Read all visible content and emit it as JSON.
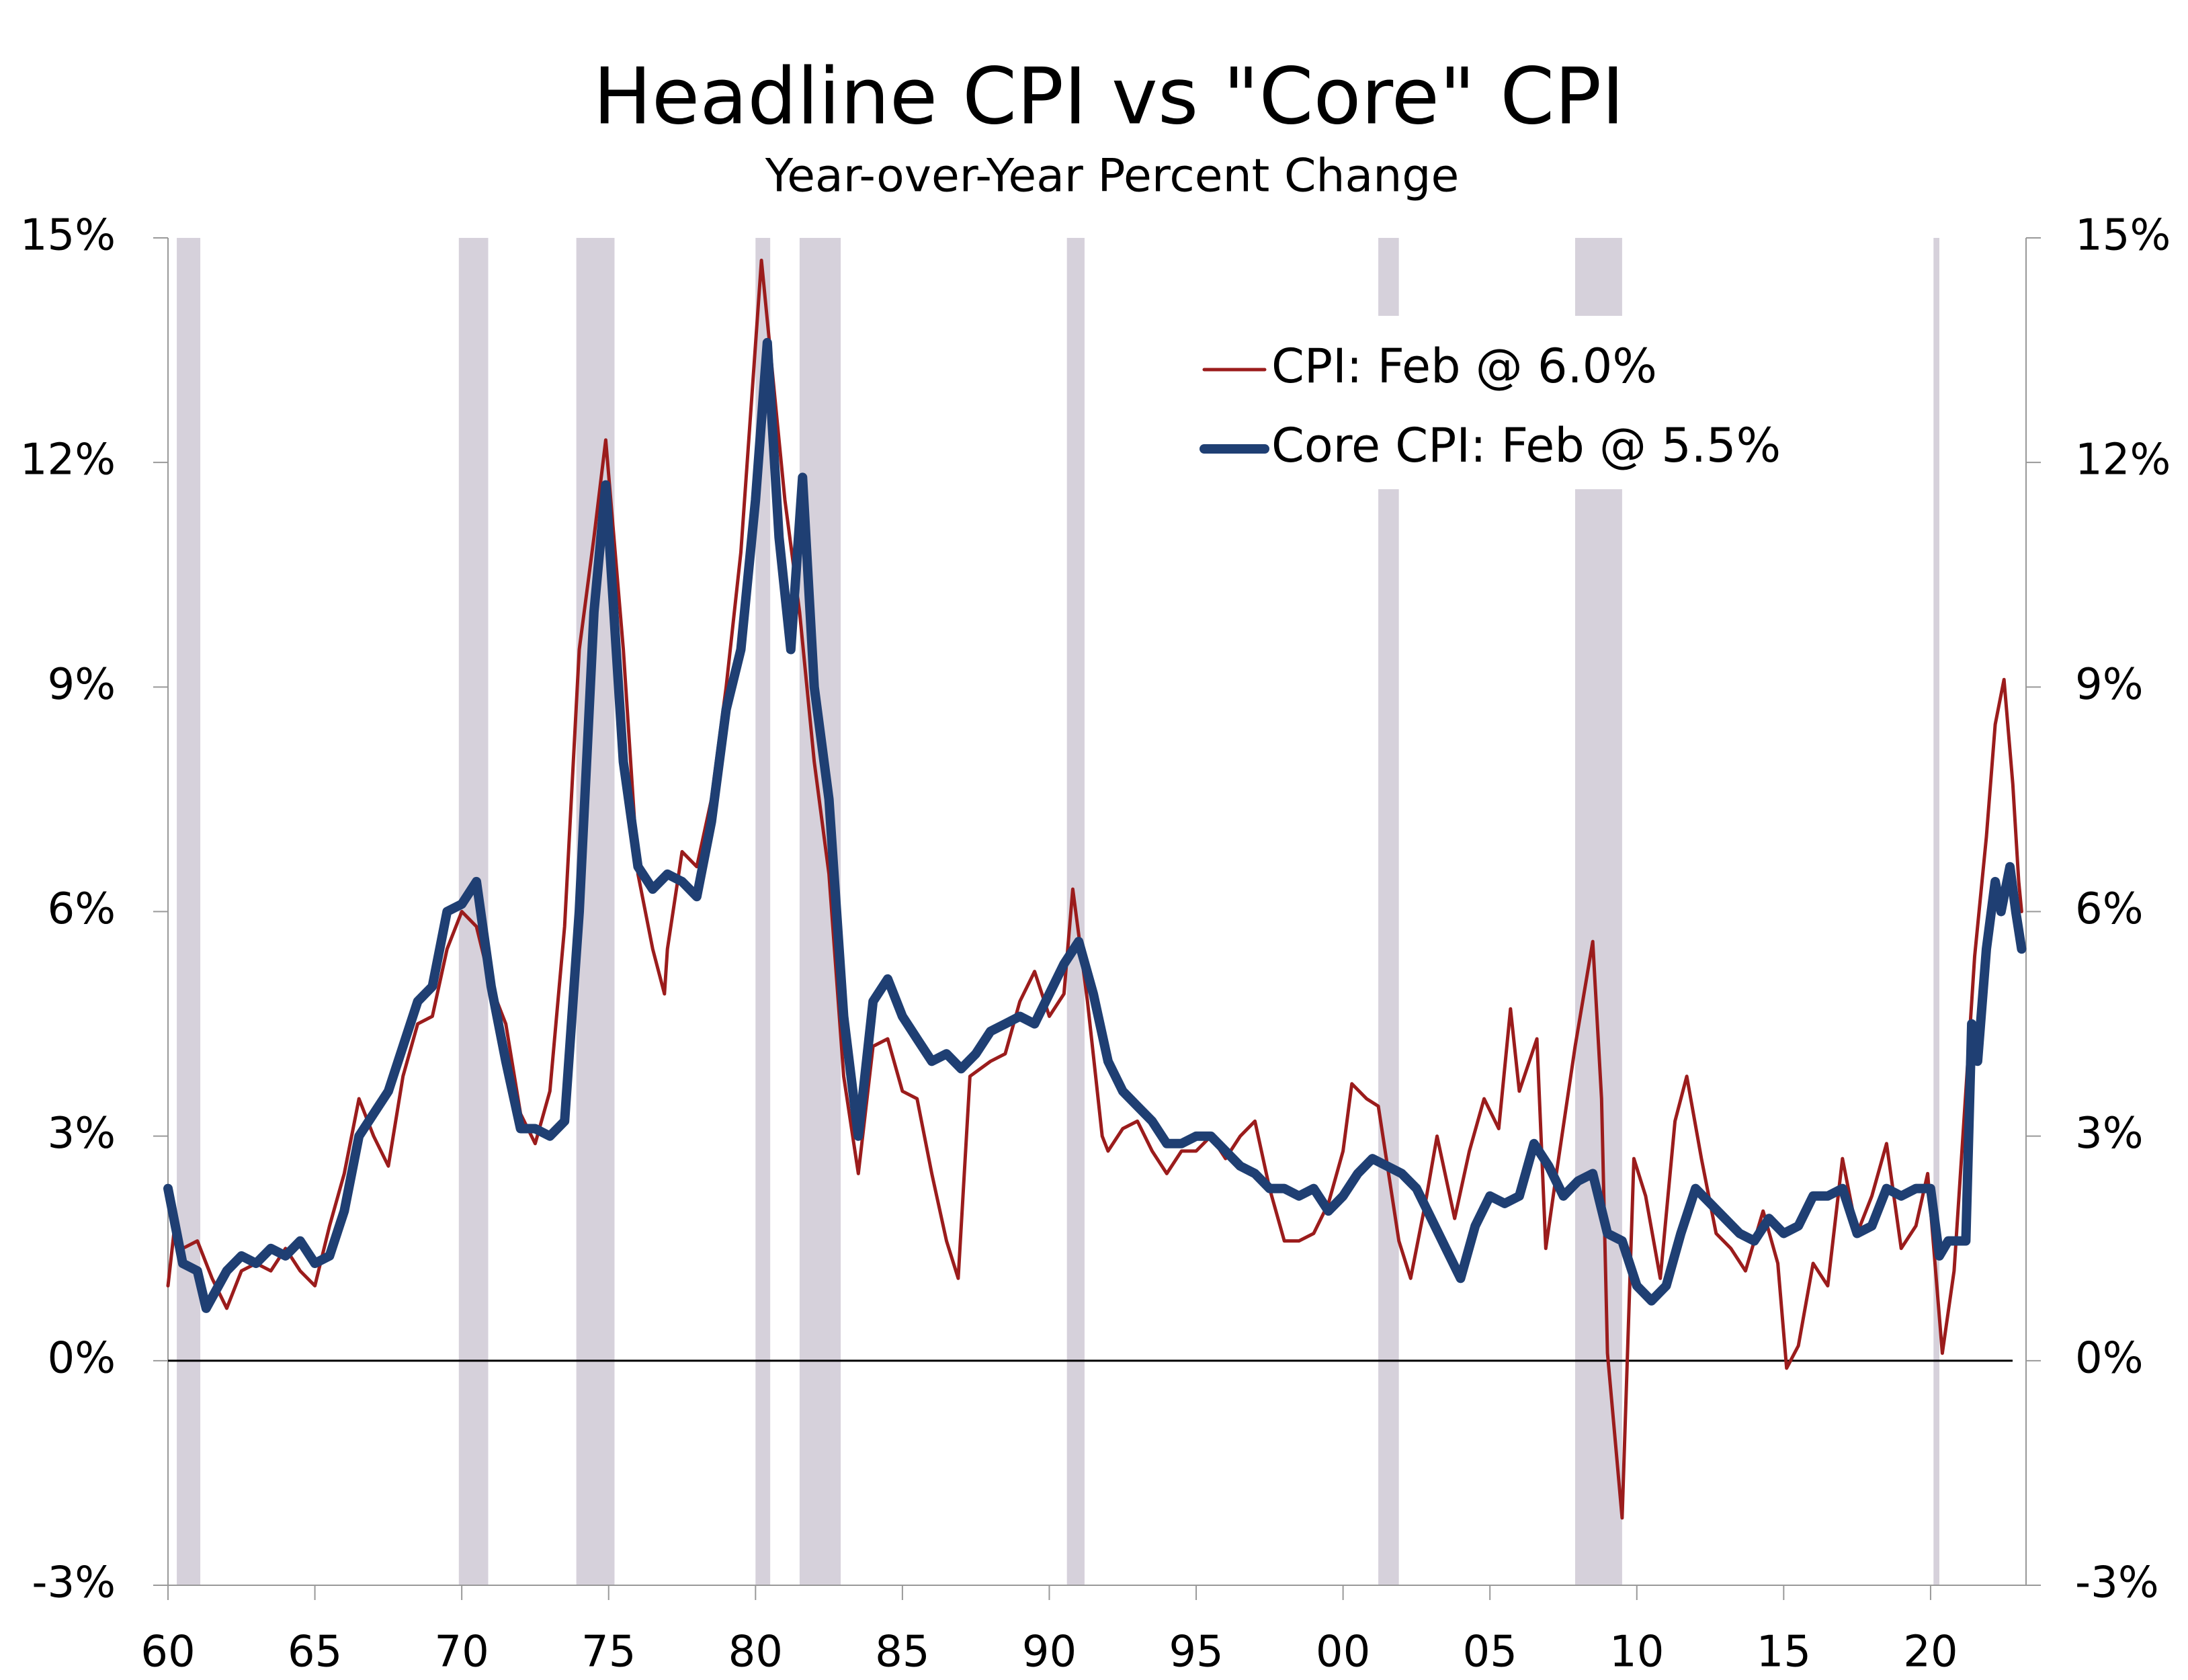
{
  "chart_data": {
    "type": "line",
    "title": "Headline CPI vs \"Core\" CPI",
    "subtitle": "Year-over-Year Percent Change",
    "xlim": [
      1960,
      2023.25
    ],
    "xticks": [
      {
        "value": 1960,
        "label": "60"
      },
      {
        "value": 1965,
        "label": "65"
      },
      {
        "value": 1970,
        "label": "70"
      },
      {
        "value": 1975,
        "label": "75"
      },
      {
        "value": 1980,
        "label": "80"
      },
      {
        "value": 1985,
        "label": "85"
      },
      {
        "value": 1990,
        "label": "90"
      },
      {
        "value": 1995,
        "label": "95"
      },
      {
        "value": 2000,
        "label": "00"
      },
      {
        "value": 2005,
        "label": "05"
      },
      {
        "value": 2010,
        "label": "10"
      },
      {
        "value": 2015,
        "label": "15"
      },
      {
        "value": 2020,
        "label": "20"
      }
    ],
    "ylim": [
      -3,
      15
    ],
    "yticks": [
      {
        "value": -3,
        "label": "-3%"
      },
      {
        "value": 0,
        "label": "0%"
      },
      {
        "value": 3,
        "label": "3%"
      },
      {
        "value": 6,
        "label": "6%"
      },
      {
        "value": 9,
        "label": "9%"
      },
      {
        "value": 12,
        "label": "12%"
      },
      {
        "value": 15,
        "label": "15%"
      }
    ],
    "y2lim": [
      -3,
      15
    ],
    "y2ticks": [
      {
        "value": -3,
        "label": "-3%"
      },
      {
        "value": 0,
        "label": "0%"
      },
      {
        "value": 3,
        "label": "3%"
      },
      {
        "value": 6,
        "label": "6%"
      },
      {
        "value": 9,
        "label": "9%"
      },
      {
        "value": 12,
        "label": "12%"
      },
      {
        "value": 15,
        "label": "15%"
      }
    ],
    "reference_line": 0,
    "recessions": [
      [
        1960.3,
        1961.1
      ],
      [
        1969.9,
        1970.9
      ],
      [
        1973.9,
        1975.2
      ],
      [
        1980.0,
        1980.5
      ],
      [
        1981.5,
        1982.9
      ],
      [
        1990.6,
        1991.2
      ],
      [
        2001.2,
        2001.9
      ],
      [
        2007.9,
        2009.5
      ],
      [
        2020.1,
        2020.3
      ]
    ],
    "recession_color": "#d6d1db",
    "legend": "upper right",
    "series": [
      {
        "name": "CPI: Feb @ 6.0%",
        "color": "#9b1c1c",
        "width": 5,
        "x": [
          1960,
          1960.2,
          1960.5,
          1961,
          1961.5,
          1962,
          1962.5,
          1963,
          1963.5,
          1964,
          1964.5,
          1965,
          1965.5,
          1966,
          1966.5,
          1967,
          1967.5,
          1968,
          1968.5,
          1969,
          1969.5,
          1970,
          1970.5,
          1971,
          1971.5,
          1972,
          1972.5,
          1973,
          1973.5,
          1974,
          1974.5,
          1974.9,
          1975.5,
          1976,
          1976.5,
          1976.9,
          1977,
          1977.5,
          1978,
          1978.5,
          1979,
          1979.5,
          1980.2,
          1980.7,
          1981,
          1981.5,
          1982,
          1982.5,
          1983,
          1983.5,
          1984,
          1984.5,
          1985,
          1985.5,
          1986,
          1986.5,
          1986.9,
          1987.3,
          1988,
          1988.5,
          1989,
          1989.5,
          1990,
          1990.5,
          1990.8,
          1991.3,
          1991.8,
          1992,
          1992.5,
          1993,
          1993.5,
          1994,
          1994.5,
          1995,
          1995.5,
          1996,
          1996.5,
          1997,
          1997.5,
          1998,
          1998.5,
          1999,
          1999.5,
          2000,
          2000.3,
          2000.8,
          2001.2,
          2001.9,
          2002.3,
          2002.8,
          2003.2,
          2003.8,
          2004.3,
          2004.8,
          2005.3,
          2005.7,
          2006,
          2006.6,
          2006.9,
          2007.3,
          2007.9,
          2008.5,
          2008.8,
          2009,
          2009.5,
          2009.9,
          2010.3,
          2010.8,
          2011.3,
          2011.7,
          2012.2,
          2012.7,
          2013.2,
          2013.7,
          2014.3,
          2014.8,
          2015.1,
          2015.5,
          2016,
          2016.5,
          2017,
          2017.5,
          2018,
          2018.5,
          2019,
          2019.5,
          2019.9,
          2020.4,
          2020.8,
          2021.3,
          2021.5,
          2021.9,
          2022.2,
          2022.5,
          2022.8,
          2023.0,
          2023.1
        ],
        "values": [
          1.0,
          1.7,
          1.5,
          1.6,
          1.1,
          0.7,
          1.2,
          1.3,
          1.2,
          1.5,
          1.2,
          1.0,
          1.8,
          2.5,
          3.5,
          3.0,
          2.6,
          3.8,
          4.5,
          4.6,
          5.5,
          6.0,
          5.8,
          5.0,
          4.5,
          3.3,
          2.9,
          3.6,
          5.8,
          9.5,
          11.0,
          12.3,
          9.5,
          6.5,
          5.5,
          4.9,
          5.5,
          6.8,
          6.6,
          7.5,
          9.0,
          10.8,
          14.7,
          12.7,
          11.5,
          10.0,
          8.0,
          6.5,
          3.8,
          2.5,
          4.2,
          4.3,
          3.6,
          3.5,
          2.5,
          1.6,
          1.1,
          3.8,
          4.0,
          4.1,
          4.8,
          5.2,
          4.6,
          4.9,
          6.3,
          4.8,
          3.0,
          2.8,
          3.1,
          3.2,
          2.8,
          2.5,
          2.8,
          2.8,
          3.0,
          2.7,
          3.0,
          3.2,
          2.3,
          1.6,
          1.6,
          1.7,
          2.1,
          2.8,
          3.7,
          3.5,
          3.4,
          1.6,
          1.1,
          2.1,
          3.0,
          1.9,
          2.8,
          3.5,
          3.1,
          4.7,
          3.6,
          4.3,
          1.5,
          2.6,
          4.2,
          5.6,
          3.5,
          0.1,
          -2.1,
          2.7,
          2.2,
          1.1,
          3.2,
          3.8,
          2.7,
          1.7,
          1.5,
          1.2,
          2.0,
          1.3,
          -0.1,
          0.2,
          1.3,
          1.0,
          2.7,
          1.7,
          2.2,
          2.9,
          1.5,
          1.8,
          2.5,
          0.1,
          1.2,
          4.2,
          5.4,
          7.0,
          8.5,
          9.1,
          7.7,
          6.4,
          6.0
        ]
      },
      {
        "name": "Core CPI: Feb @ 5.5%",
        "color": "#1f3f73",
        "width": 14,
        "x": [
          1960,
          1960.5,
          1961,
          1961.3,
          1962,
          1962.5,
          1963,
          1963.5,
          1964,
          1964.5,
          1965,
          1965.5,
          1966,
          1966.5,
          1967,
          1967.5,
          1968,
          1968.5,
          1969,
          1969.5,
          1970,
          1970.5,
          1971,
          1971.5,
          1972,
          1972.5,
          1973,
          1973.5,
          1974,
          1974.5,
          1974.9,
          1975.5,
          1976,
          1976.5,
          1977,
          1977.5,
          1978,
          1978.5,
          1979,
          1979.5,
          1980,
          1980.4,
          1980.8,
          1981.2,
          1981.6,
          1982,
          1982.5,
          1983,
          1983.5,
          1984,
          1984.5,
          1985,
          1985.5,
          1986,
          1986.5,
          1987,
          1987.5,
          1988,
          1988.5,
          1989,
          1989.5,
          1990,
          1990.5,
          1991,
          1991.5,
          1992,
          1992.5,
          1993,
          1993.5,
          1994,
          1994.5,
          1995,
          1995.5,
          1996,
          1996.5,
          1997,
          1997.5,
          1998,
          1998.5,
          1999,
          1999.5,
          2000,
          2000.5,
          2001,
          2001.5,
          2002,
          2002.5,
          2003,
          2003.5,
          2004,
          2004.5,
          2005,
          2005.5,
          2006,
          2006.5,
          2007,
          2007.5,
          2008,
          2008.5,
          2009,
          2009.5,
          2010,
          2010.5,
          2011,
          2011.5,
          2012,
          2012.5,
          2013,
          2013.5,
          2014,
          2014.5,
          2015,
          2015.5,
          2016,
          2016.5,
          2017,
          2017.5,
          2018,
          2018.5,
          2019,
          2019.5,
          2020,
          2020.3,
          2020.6,
          2020.9,
          2021.2,
          2021.4,
          2021.6,
          2021.9,
          2022.2,
          2022.4,
          2022.7,
          2022.9,
          2023.1
        ],
        "values": [
          2.3,
          1.3,
          1.2,
          0.7,
          1.2,
          1.4,
          1.3,
          1.5,
          1.4,
          1.6,
          1.3,
          1.4,
          2.0,
          3.0,
          3.3,
          3.6,
          4.2,
          4.8,
          5.0,
          6.0,
          6.1,
          6.4,
          5.0,
          4.0,
          3.1,
          3.1,
          3.0,
          3.2,
          6.0,
          10.0,
          11.7,
          8.0,
          6.6,
          6.3,
          6.5,
          6.4,
          6.2,
          7.2,
          8.7,
          9.5,
          11.5,
          13.6,
          11.0,
          9.5,
          11.8,
          9.0,
          7.5,
          4.6,
          3.0,
          4.8,
          5.1,
          4.6,
          4.3,
          4.0,
          4.1,
          3.9,
          4.1,
          4.4,
          4.5,
          4.6,
          4.5,
          4.9,
          5.3,
          5.6,
          4.9,
          4.0,
          3.6,
          3.4,
          3.2,
          2.9,
          2.9,
          3.0,
          3.0,
          2.8,
          2.6,
          2.5,
          2.3,
          2.3,
          2.2,
          2.3,
          2.0,
          2.2,
          2.5,
          2.7,
          2.6,
          2.5,
          2.3,
          1.9,
          1.5,
          1.1,
          1.8,
          2.2,
          2.1,
          2.2,
          2.9,
          2.6,
          2.2,
          2.4,
          2.5,
          1.7,
          1.6,
          1.0,
          0.8,
          1.0,
          1.7,
          2.3,
          2.1,
          1.9,
          1.7,
          1.6,
          1.9,
          1.7,
          1.8,
          2.2,
          2.2,
          2.3,
          1.7,
          1.8,
          2.3,
          2.2,
          2.3,
          2.3,
          1.4,
          1.6,
          1.6,
          1.6,
          4.5,
          4.0,
          5.5,
          6.4,
          6.0,
          6.6,
          6.0,
          5.5
        ]
      }
    ]
  }
}
